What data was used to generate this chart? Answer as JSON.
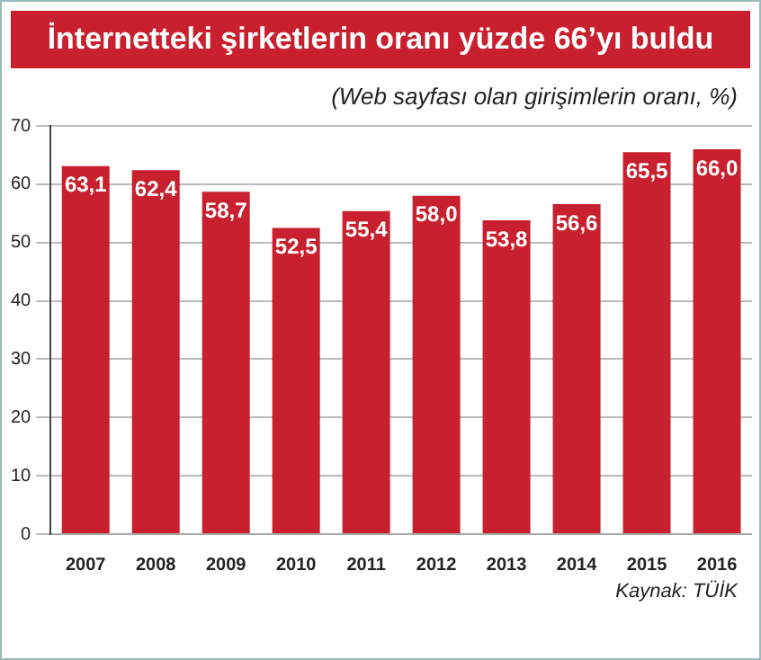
{
  "chart_data": {
    "type": "bar",
    "title": "İnternetteki şirketlerin oranı yüzde 66’yı buldu",
    "subtitle": "(Web sayfası olan girişimlerin oranı, %)",
    "annotations": [
      "Kaynak: TÜİK"
    ],
    "categories": [
      "2007",
      "2008",
      "2009",
      "2010",
      "2011",
      "2012",
      "2013",
      "2014",
      "2015",
      "2016"
    ],
    "values": [
      63.1,
      62.4,
      58.7,
      52.5,
      55.4,
      58.0,
      53.8,
      56.6,
      65.5,
      66.0
    ],
    "value_labels": [
      "63,1",
      "62,4",
      "58,7",
      "52,5",
      "55,4",
      "58,0",
      "53,8",
      "56,6",
      "65,5",
      "66,0"
    ],
    "color": "#c8202e",
    "ylim": [
      0,
      70
    ],
    "yticks": [
      0,
      10,
      20,
      30,
      40,
      50,
      60,
      70
    ],
    "grid": "y"
  }
}
